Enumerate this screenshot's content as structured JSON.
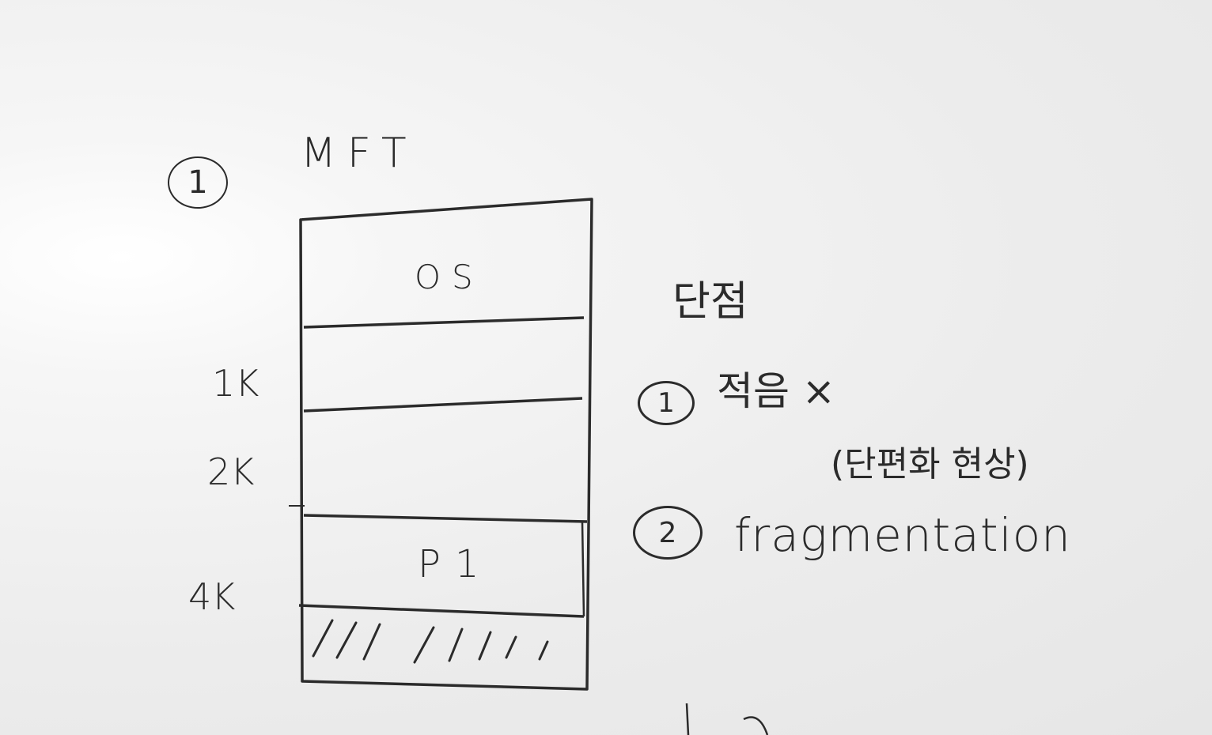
{
  "title": {
    "number": "1",
    "label": "MFT"
  },
  "memory": {
    "segments": [
      {
        "label": "OS"
      },
      {
        "label": ""
      },
      {
        "label": ""
      },
      {
        "label": "P1"
      },
      {
        "label": ""
      }
    ],
    "addresses": [
      "1K",
      "2K",
      "4K"
    ]
  },
  "drawbacks": {
    "heading": "단점",
    "items": [
      {
        "number": "1",
        "text": "적음 ×"
      },
      {
        "number": "2",
        "text": "fragmentation",
        "note": "(단편화 현상)"
      }
    ]
  },
  "colors": {
    "ink": "#2b2b2b",
    "board": "#ececec"
  }
}
